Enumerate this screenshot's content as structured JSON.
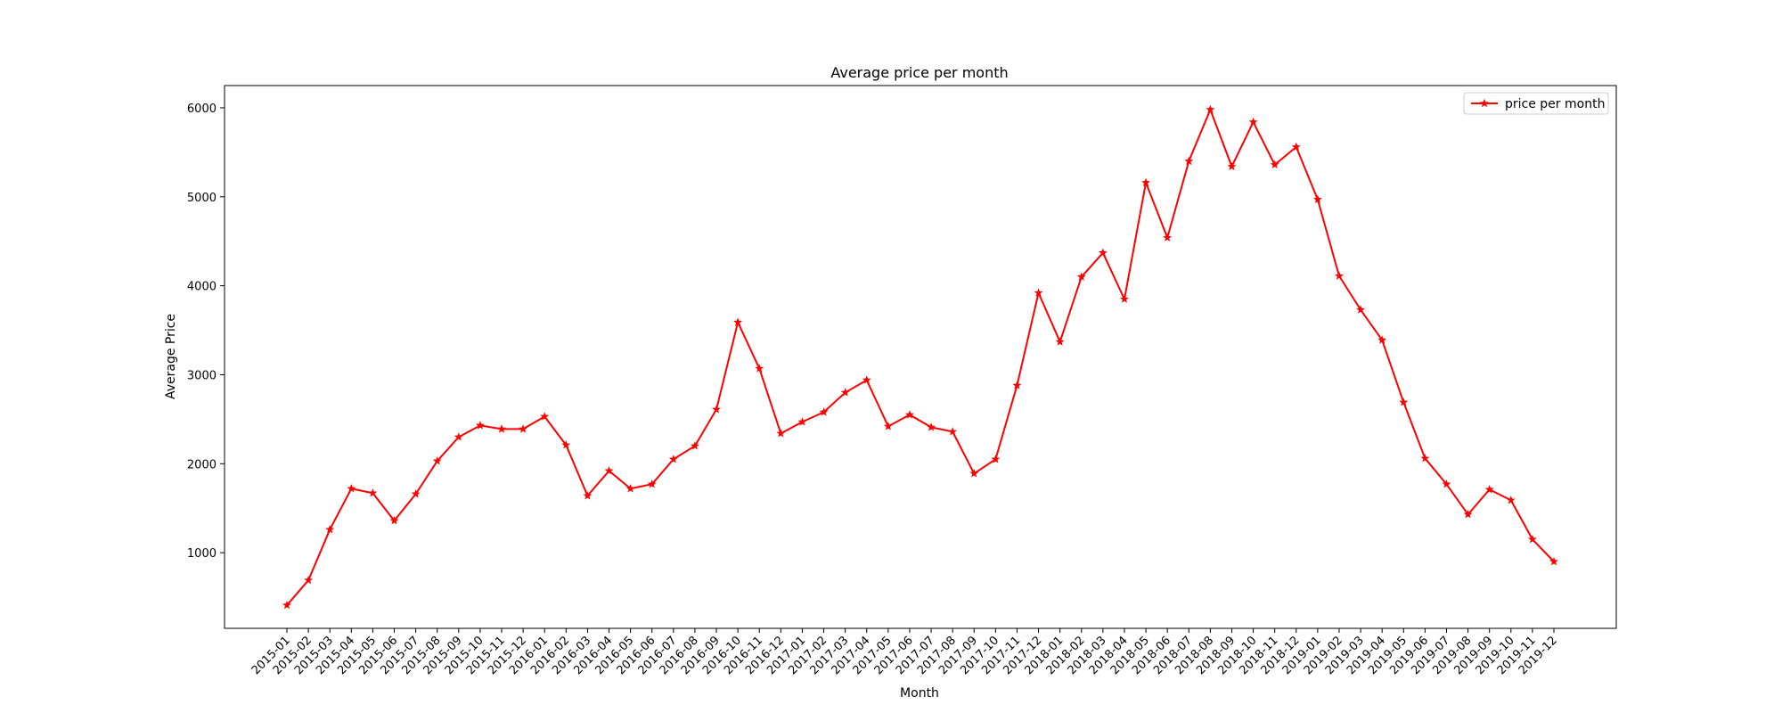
{
  "chart_data": {
    "type": "line",
    "title": "Average price per month",
    "xlabel": "Month",
    "ylabel": "Average Price",
    "ylim": [
      150,
      6250
    ],
    "yticks": [
      1000,
      2000,
      3000,
      4000,
      5000,
      6000
    ],
    "grid": false,
    "legend_position": "top-right",
    "line_color": "#ff0000",
    "marker": "star",
    "categories": [
      "2015-01",
      "2015-02",
      "2015-03",
      "2015-04",
      "2015-05",
      "2015-06",
      "2015-07",
      "2015-08",
      "2015-09",
      "2015-10",
      "2015-11",
      "2015-12",
      "2016-01",
      "2016-02",
      "2016-03",
      "2016-04",
      "2016-05",
      "2016-06",
      "2016-07",
      "2016-08",
      "2016-09",
      "2016-10",
      "2016-11",
      "2016-12",
      "2017-01",
      "2017-02",
      "2017-03",
      "2017-04",
      "2017-05",
      "2017-06",
      "2017-07",
      "2017-08",
      "2017-09",
      "2017-10",
      "2017-11",
      "2017-12",
      "2018-01",
      "2018-02",
      "2018-03",
      "2018-04",
      "2018-05",
      "2018-06",
      "2018-07",
      "2018-08",
      "2018-09",
      "2018-10",
      "2018-11",
      "2018-12",
      "2019-01",
      "2019-02",
      "2019-03",
      "2019-04",
      "2019-05",
      "2019-06",
      "2019-07",
      "2019-08",
      "2019-09",
      "2019-10",
      "2019-11",
      "2019-12"
    ],
    "series": [
      {
        "name": "price per month",
        "values": [
          410,
          690,
          1260,
          1720,
          1670,
          1360,
          1660,
          2030,
          2300,
          2430,
          2390,
          2390,
          2530,
          2210,
          1640,
          1920,
          1720,
          1770,
          2050,
          2200,
          2610,
          3590,
          3070,
          2340,
          2470,
          2580,
          2800,
          2940,
          2420,
          2550,
          2410,
          2360,
          1890,
          2050,
          2880,
          3920,
          3370,
          4100,
          4370,
          3850,
          5160,
          4540,
          5400,
          5980,
          5340,
          5840,
          5360,
          5560,
          4970,
          4110,
          3730,
          3390,
          2690,
          2060,
          1770,
          1430,
          1710,
          1590,
          1150,
          900
        ]
      }
    ]
  }
}
